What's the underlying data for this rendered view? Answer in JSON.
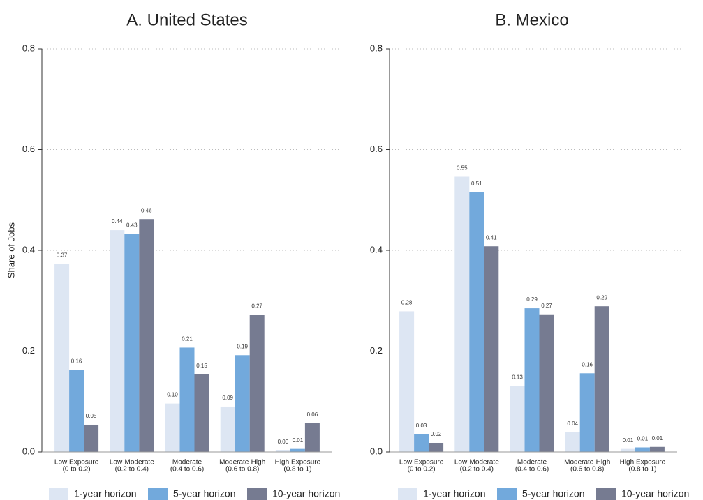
{
  "chart_data": [
    {
      "type": "bar",
      "title": "A. United States",
      "y_label": "Share of Jobs",
      "categories": [
        [
          "Low Exposure",
          "(0 to 0.2)"
        ],
        [
          "Low-Moderate",
          "(0.2 to 0.4)"
        ],
        [
          "Moderate",
          "(0.4 to 0.6)"
        ],
        [
          "Moderate-High",
          "(0.6 to 0.8)"
        ],
        [
          "High Exposure",
          "(0.8 to 1)"
        ]
      ],
      "series": [
        {
          "name": "1-year horizon",
          "color": "#dde6f3",
          "values": [
            0.373,
            0.44,
            0.096,
            0.09,
            0.003
          ],
          "value_labels": [
            "0.37",
            "0.44",
            "0.10",
            "0.09",
            "0.00"
          ]
        },
        {
          "name": "5-year horizon",
          "color": "#72a9dc",
          "values": [
            0.163,
            0.433,
            0.207,
            0.192,
            0.006
          ],
          "value_labels": [
            "0.16",
            "0.43",
            "0.21",
            "0.19",
            "0.01"
          ]
        },
        {
          "name": "10-year horizon",
          "color": "#767b91",
          "values": [
            0.054,
            0.462,
            0.154,
            0.272,
            0.057
          ],
          "value_labels": [
            "0.05",
            "0.46",
            "0.15",
            "0.27",
            "0.06"
          ]
        }
      ],
      "ylim": [
        0,
        0.8
      ],
      "yticks": [
        {
          "value": 0,
          "label": "0.0"
        },
        {
          "value": 0.2,
          "label": "0.2"
        },
        {
          "value": 0.4,
          "label": "0.4"
        },
        {
          "value": 0.6,
          "label": "0.6"
        },
        {
          "value": 0.8,
          "label": "0.8"
        }
      ],
      "grid": true
    },
    {
      "type": "bar",
      "title": "B. Mexico",
      "categories": [
        [
          "Low Exposure",
          "(0 to 0.2)"
        ],
        [
          "Low-Moderate",
          "(0.2 to 0.4)"
        ],
        [
          "Moderate",
          "(0.4 to 0.6)"
        ],
        [
          "Moderate-High",
          "(0.6 to 0.8)"
        ],
        [
          "High Exposure",
          "(0.8 to 1)"
        ]
      ],
      "series": [
        {
          "name": "1-year horizon",
          "color": "#dde6f3",
          "values": [
            0.279,
            0.546,
            0.131,
            0.039,
            0.006
          ],
          "value_labels": [
            "0.28",
            "0.55",
            "0.13",
            "0.04",
            "0.01"
          ]
        },
        {
          "name": "5-year horizon",
          "color": "#72a9dc",
          "values": [
            0.035,
            0.515,
            0.285,
            0.156,
            0.009
          ],
          "value_labels": [
            "0.03",
            "0.51",
            "0.29",
            "0.16",
            "0.01"
          ]
        },
        {
          "name": "10-year horizon",
          "color": "#767b91",
          "values": [
            0.018,
            0.408,
            0.273,
            0.289,
            0.01
          ],
          "value_labels": [
            "0.02",
            "0.41",
            "0.27",
            "0.29",
            "0.01"
          ]
        }
      ],
      "ylim": [
        0,
        0.8
      ],
      "yticks": [
        {
          "value": 0,
          "label": "0.0"
        },
        {
          "value": 0.2,
          "label": "0.2"
        },
        {
          "value": 0.4,
          "label": "0.4"
        },
        {
          "value": 0.6,
          "label": "0.6"
        },
        {
          "value": 0.8,
          "label": "0.8"
        }
      ],
      "grid": true
    }
  ]
}
